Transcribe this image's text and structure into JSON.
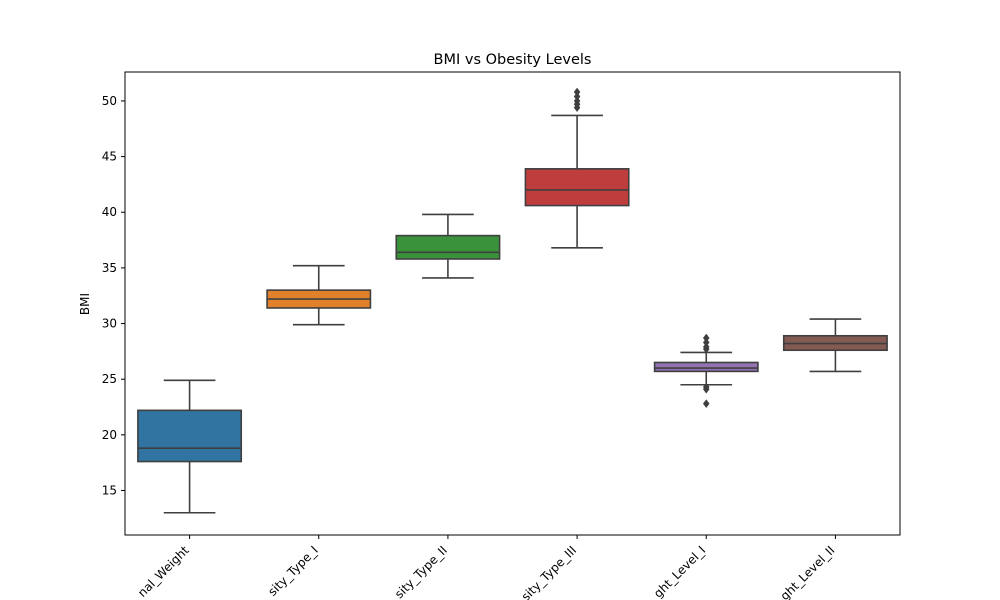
{
  "chart_data": {
    "type": "box",
    "title": "BMI vs Obesity Levels",
    "xlabel": "",
    "ylabel": "BMI",
    "ylim": [
      11.0,
      52.6
    ],
    "yticks": [
      15,
      20,
      25,
      30,
      35,
      40,
      45,
      50
    ],
    "ytick_labels": [
      "15",
      "20",
      "25",
      "30",
      "35",
      "40",
      "45",
      "50"
    ],
    "grid": false,
    "categories": [
      "Normal_Weight",
      "Obesity_Type_I",
      "Obesity_Type_II",
      "Obesity_Type_III",
      "Overweight_Level_I",
      "Overweight_Level_II"
    ],
    "category_labels_visible": [
      "nal_Weight",
      "sity_Type_I",
      "sity_Type_II",
      "sity_Type_III",
      "ght_Level_I",
      "ght_Level_II"
    ],
    "boxes": [
      {
        "category": "Normal_Weight",
        "whisker_low": 13.0,
        "q1": 17.6,
        "median": 18.8,
        "q3": 22.2,
        "whisker_high": 24.9,
        "outliers": [],
        "color": "#3274a1"
      },
      {
        "category": "Obesity_Type_I",
        "whisker_low": 29.9,
        "q1": 31.4,
        "median": 32.2,
        "q3": 33.0,
        "whisker_high": 35.2,
        "outliers": [],
        "color": "#e1812c"
      },
      {
        "category": "Obesity_Type_II",
        "whisker_low": 34.1,
        "q1": 35.8,
        "median": 36.4,
        "q3": 37.9,
        "whisker_high": 39.8,
        "outliers": [],
        "color": "#3a923a"
      },
      {
        "category": "Obesity_Type_III",
        "whisker_low": 36.8,
        "q1": 40.6,
        "median": 42.0,
        "q3": 43.9,
        "whisker_high": 48.7,
        "outliers": [
          49.4,
          49.7,
          50.0,
          50.4,
          50.8
        ],
        "color": "#c03d3e"
      },
      {
        "category": "Overweight_Level_I",
        "whisker_low": 24.5,
        "q1": 25.7,
        "median": 26.0,
        "q3": 26.5,
        "whisker_high": 27.4,
        "outliers": [
          22.8,
          24.1,
          24.3,
          27.7,
          27.9,
          28.3,
          28.7
        ],
        "color": "#9372b2"
      },
      {
        "category": "Overweight_Level_II",
        "whisker_low": 25.7,
        "q1": 27.6,
        "median": 28.2,
        "q3": 28.9,
        "whisker_high": 30.4,
        "outliers": [],
        "color": "#845b53"
      }
    ]
  }
}
